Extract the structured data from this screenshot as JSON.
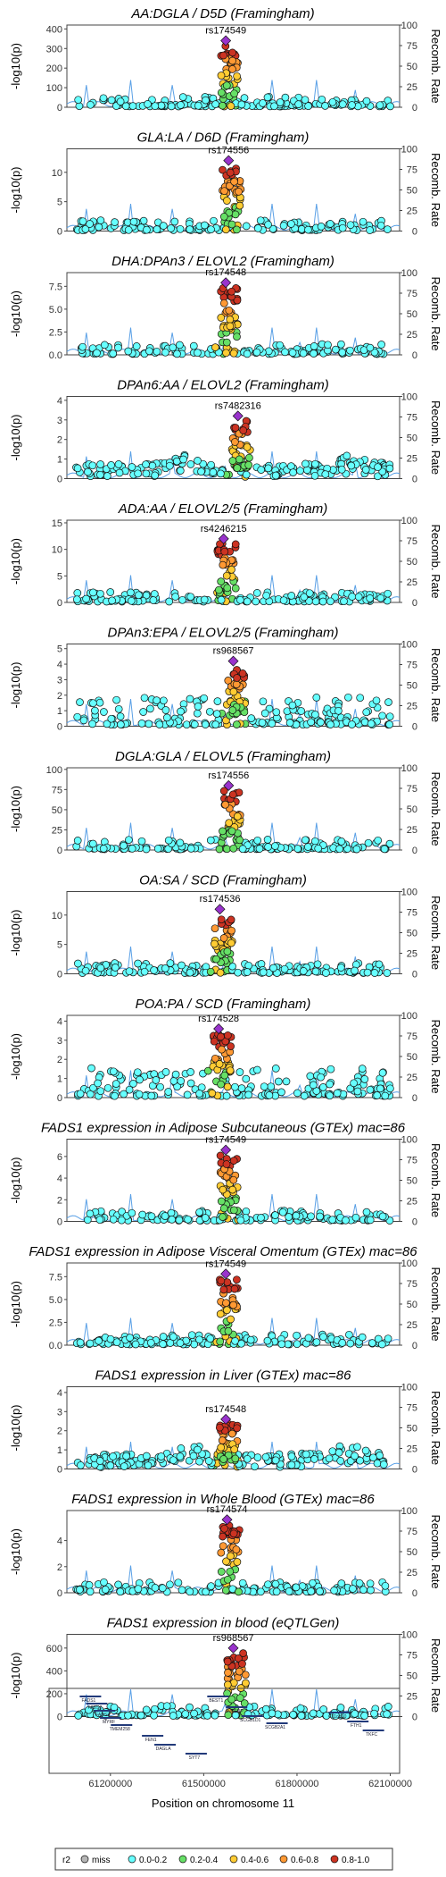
{
  "colors": {
    "miss": "#b5b5b5",
    "r2_0_0.2": "#66ffff",
    "r2_0.2_0.4": "#66e066",
    "r2_0.4_0.6": "#ffcc33",
    "r2_0.6_0.8": "#ff9933",
    "r2_0.8_1.0": "#cc3322",
    "lead": "#9933cc",
    "recomb": "#5aa0e6"
  },
  "y_axis_label": "-log10(p)",
  "right_axis_label": "Recomb. Rate",
  "right_axis_ticks": [
    "0",
    "25",
    "50",
    "75",
    "100"
  ],
  "x_axis": {
    "label": "Position on chromosome 11",
    "ticks": [
      "61200000",
      "61500000",
      "61800000",
      "62100000"
    ],
    "range": [
      61060000,
      62130000
    ]
  },
  "legend": {
    "title": "r2",
    "items": [
      "miss",
      "0.0-0.2",
      "0.2-0.4",
      "0.4-0.6",
      "0.6-0.8",
      "0.8-1.0"
    ]
  },
  "genes": [
    "FADS1",
    "FADS2",
    "FADS3",
    "MYRF",
    "TMEM258",
    "FEN1",
    "DAGLA",
    "SYT7",
    "BEST1",
    "INCENP",
    "SCGB1D1",
    "SCGB2A1",
    "C11orf10",
    "FTH1",
    "TKFC"
  ],
  "chart_data": [
    {
      "type": "scatter",
      "title": "AA:DGLA / D5D (Framingham)",
      "lead_snp": "rs174549",
      "lead_x": 61571000,
      "lead_y": 340,
      "ylim": [
        0,
        420
      ],
      "ticks": [
        "0",
        "100",
        "200",
        "300",
        "400"
      ],
      "profile": "bigpeak"
    },
    {
      "type": "scatter",
      "title": "GLA:LA / D6D (Framingham)",
      "lead_snp": "rs174556",
      "lead_x": 61580000,
      "lead_y": 12,
      "ylim": [
        0,
        14
      ],
      "ticks": [
        "0",
        "5",
        "10"
      ],
      "profile": "bigpeak"
    },
    {
      "type": "scatter",
      "title": "DHA:DPAn3 / ELOVL2 (Framingham)",
      "lead_snp": "rs174548",
      "lead_x": 61571000,
      "lead_y": 7.9,
      "ylim": [
        0,
        9
      ],
      "ticks": [
        "0.0",
        "2.5",
        "5.0",
        "7.5"
      ],
      "profile": "bigpeak"
    },
    {
      "type": "scatter",
      "title": "DPAn6:AA / ELOVL2 (Framingham)",
      "lead_snp": "rs7482316",
      "lead_x": 61610000,
      "lead_y": 3.2,
      "ylim": [
        0,
        4.2
      ],
      "ticks": [
        "0",
        "1",
        "2",
        "3",
        "4"
      ],
      "profile": "flat"
    },
    {
      "type": "scatter",
      "title": "ADA:AA / ELOVL2/5 (Framingham)",
      "lead_snp": "rs4246215",
      "lead_x": 61564000,
      "lead_y": 12,
      "ylim": [
        0,
        15.5
      ],
      "ticks": [
        "0",
        "5",
        "10",
        "15"
      ],
      "profile": "bigpeak"
    },
    {
      "type": "scatter",
      "title": "DPAn3:EPA / ELOVL2/5 (Framingham)",
      "lead_snp": "rs968567",
      "lead_x": 61595000,
      "lead_y": 4.2,
      "ylim": [
        0,
        5.3
      ],
      "ticks": [
        "0",
        "1",
        "2",
        "3",
        "4",
        "5"
      ],
      "profile": "midpeak"
    },
    {
      "type": "scatter",
      "title": "DGLA:GLA / ELOVL5 (Framingham)",
      "lead_snp": "rs174556",
      "lead_x": 61580000,
      "lead_y": 80,
      "ylim": [
        0,
        102
      ],
      "ticks": [
        "0",
        "25",
        "50",
        "75",
        "100"
      ],
      "profile": "bigpeak"
    },
    {
      "type": "scatter",
      "title": "OA:SA / SCD (Framingham)",
      "lead_snp": "rs174536",
      "lead_x": 61552000,
      "lead_y": 11,
      "ylim": [
        0,
        14
      ],
      "ticks": [
        "0",
        "5",
        "10"
      ],
      "profile": "bigpeak"
    },
    {
      "type": "scatter",
      "title": "POA:PA / SCD (Framingham)",
      "lead_snp": "rs174528",
      "lead_x": 61548000,
      "lead_y": 3.6,
      "ylim": [
        0,
        4.3
      ],
      "ticks": [
        "0",
        "1",
        "2",
        "3",
        "4"
      ],
      "profile": "midpeak"
    },
    {
      "type": "scatter",
      "title": "FADS1 expression in Adipose Subcutaneous (GTEx) mac=86",
      "lead_snp": "rs174549",
      "lead_x": 61571000,
      "lead_y": 6.6,
      "ylim": [
        0,
        7.6
      ],
      "ticks": [
        "0",
        "2",
        "4",
        "6"
      ],
      "profile": "bigpeak"
    },
    {
      "type": "scatter",
      "title": "FADS1 expression in Adipose Visceral Omentum (GTEx) mac=86",
      "lead_snp": "rs174549",
      "lead_x": 61571000,
      "lead_y": 7.8,
      "ylim": [
        0,
        9
      ],
      "ticks": [
        "0.0",
        "2.5",
        "5.0",
        "7.5"
      ],
      "profile": "bigpeak"
    },
    {
      "type": "scatter",
      "title": "FADS1 expression in Liver (GTEx) mac=86",
      "lead_snp": "rs174548",
      "lead_x": 61571000,
      "lead_y": 2.6,
      "ylim": [
        0,
        4.3
      ],
      "ticks": [
        "0",
        "1",
        "2",
        "3",
        "4"
      ],
      "profile": "flat"
    },
    {
      "type": "scatter",
      "title": "FADS1 expression in Whole Blood (GTEx) mac=86",
      "lead_snp": "rs174574",
      "lead_x": 61575000,
      "lead_y": 5.6,
      "ylim": [
        0,
        6.3
      ],
      "ticks": [
        "0",
        "2",
        "4"
      ],
      "profile": "bigpeak"
    },
    {
      "type": "scatter",
      "title": "FADS1 expression in blood (eQTLGen)",
      "lead_snp": "rs968567",
      "lead_x": 61595000,
      "lead_y": 600,
      "ylim": [
        0,
        720
      ],
      "ticks": [
        "0",
        "200",
        "400",
        "600"
      ],
      "profile": "bigpeak"
    }
  ]
}
